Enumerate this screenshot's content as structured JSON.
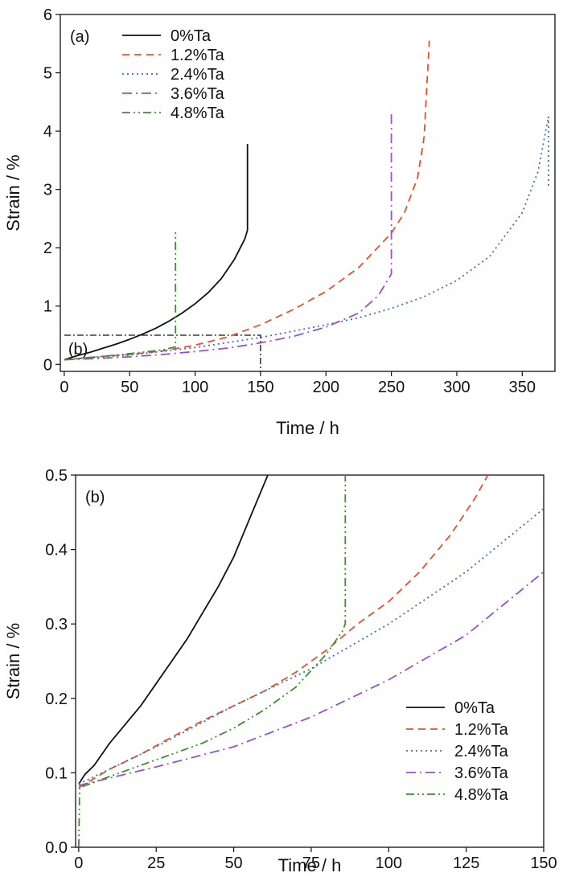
{
  "figure": {
    "background": "#ffffff",
    "axis_color": "#111111"
  },
  "chart_data": [
    {
      "type": "line",
      "panel_label": "(a)",
      "xlabel": "Time / h",
      "ylabel": "Strain / %",
      "xlim": [
        -3,
        375
      ],
      "ylim": [
        -0.12,
        6
      ],
      "xticks": [
        0,
        50,
        100,
        150,
        200,
        250,
        300,
        350
      ],
      "yticks": [
        0,
        1,
        2,
        3,
        4,
        5,
        6
      ],
      "grid": false,
      "legend_position": "top-left",
      "inset_box": {
        "label": "(b)",
        "x": [
          0,
          150
        ],
        "y": [
          0,
          0.5
        ]
      },
      "series": [
        {
          "name": "0%Ta",
          "color": "#111111",
          "dash": "solid",
          "points": [
            [
              0,
              0.08
            ],
            [
              10,
              0.15
            ],
            [
              20,
              0.21
            ],
            [
              30,
              0.28
            ],
            [
              40,
              0.35
            ],
            [
              50,
              0.43
            ],
            [
              60,
              0.52
            ],
            [
              70,
              0.62
            ],
            [
              80,
              0.74
            ],
            [
              90,
              0.88
            ],
            [
              100,
              1.04
            ],
            [
              110,
              1.23
            ],
            [
              120,
              1.47
            ],
            [
              130,
              1.8
            ],
            [
              138,
              2.15
            ],
            [
              140,
              2.3
            ],
            [
              140,
              3.78
            ]
          ]
        },
        {
          "name": "1.2%Ta",
          "color": "#e8502a",
          "dash": "dashed",
          "points": [
            [
              0,
              0.08
            ],
            [
              25,
              0.13
            ],
            [
              50,
              0.17
            ],
            [
              75,
              0.23
            ],
            [
              100,
              0.33
            ],
            [
              125,
              0.47
            ],
            [
              150,
              0.68
            ],
            [
              175,
              0.94
            ],
            [
              200,
              1.25
            ],
            [
              225,
              1.66
            ],
            [
              250,
              2.25
            ],
            [
              260,
              2.6
            ],
            [
              270,
              3.2
            ],
            [
              275,
              3.9
            ],
            [
              279,
              5.55
            ]
          ]
        },
        {
          "name": "2.4%Ta",
          "color": "#3b6fc4",
          "dash": "dotted",
          "points": [
            [
              0,
              0.08
            ],
            [
              50,
              0.16
            ],
            [
              100,
              0.29
            ],
            [
              150,
              0.46
            ],
            [
              200,
              0.68
            ],
            [
              225,
              0.8
            ],
            [
              250,
              0.96
            ],
            [
              275,
              1.16
            ],
            [
              300,
              1.44
            ],
            [
              325,
              1.85
            ],
            [
              350,
              2.6
            ],
            [
              362,
              3.3
            ],
            [
              370,
              4.25
            ],
            [
              370,
              3.05
            ]
          ]
        },
        {
          "name": "3.6%Ta",
          "color": "#9b4fc6",
          "dash": "dashdot",
          "points": [
            [
              0,
              0.08
            ],
            [
              25,
              0.1
            ],
            [
              50,
              0.13
            ],
            [
              75,
              0.17
            ],
            [
              100,
              0.22
            ],
            [
              125,
              0.28
            ],
            [
              150,
              0.37
            ],
            [
              175,
              0.48
            ],
            [
              200,
              0.64
            ],
            [
              225,
              0.88
            ],
            [
              240,
              1.18
            ],
            [
              250,
              1.55
            ],
            [
              250,
              4.3
            ]
          ]
        },
        {
          "name": "4.8%Ta",
          "color": "#3f8f2e",
          "dash": "dashdotdot",
          "points": [
            [
              0,
              0.08
            ],
            [
              20,
              0.12
            ],
            [
              40,
              0.16
            ],
            [
              60,
              0.21
            ],
            [
              75,
              0.25
            ],
            [
              85,
              0.3
            ],
            [
              85,
              2.3
            ]
          ]
        }
      ]
    },
    {
      "type": "line",
      "panel_label": "(b)",
      "xlabel": "Time / h",
      "ylabel": "Strain / %",
      "xlim": [
        -1,
        150
      ],
      "ylim": [
        0,
        0.5
      ],
      "xticks": [
        0,
        25,
        50,
        75,
        100,
        125,
        150
      ],
      "yticks": [
        0.0,
        0.1,
        0.2,
        0.3,
        0.4,
        0.5
      ],
      "grid": false,
      "legend_position": "bottom-right",
      "series": [
        {
          "name": "0%Ta",
          "color": "#111111",
          "dash": "solid",
          "points": [
            [
              0,
              0.085
            ],
            [
              2,
              0.098
            ],
            [
              5,
              0.11
            ],
            [
              10,
              0.14
            ],
            [
              15,
              0.165
            ],
            [
              20,
              0.19
            ],
            [
              25,
              0.22
            ],
            [
              30,
              0.25
            ],
            [
              35,
              0.28
            ],
            [
              40,
              0.315
            ],
            [
              45,
              0.35
            ],
            [
              50,
              0.39
            ],
            [
              55,
              0.44
            ],
            [
              60,
              0.49
            ],
            [
              61,
              0.5
            ]
          ]
        },
        {
          "name": "1.2%Ta",
          "color": "#e8502a",
          "dash": "dashed",
          "points": [
            [
              0,
              0.08
            ],
            [
              10,
              0.105
            ],
            [
              20,
              0.125
            ],
            [
              30,
              0.148
            ],
            [
              40,
              0.17
            ],
            [
              50,
              0.19
            ],
            [
              60,
              0.21
            ],
            [
              70,
              0.235
            ],
            [
              80,
              0.265
            ],
            [
              90,
              0.3
            ],
            [
              100,
              0.33
            ],
            [
              110,
              0.37
            ],
            [
              120,
              0.42
            ],
            [
              128,
              0.47
            ],
            [
              132,
              0.5
            ]
          ]
        },
        {
          "name": "2.4%Ta",
          "color": "#3b6fc4",
          "dash": "dotted",
          "points": [
            [
              0,
              0.085
            ],
            [
              25,
              0.135
            ],
            [
              50,
              0.19
            ],
            [
              75,
              0.24
            ],
            [
              100,
              0.3
            ],
            [
              125,
              0.37
            ],
            [
              150,
              0.455
            ]
          ]
        },
        {
          "name": "3.6%Ta",
          "color": "#9b4fc6",
          "dash": "dashdot",
          "points": [
            [
              0,
              0.083
            ],
            [
              25,
              0.108
            ],
            [
              50,
              0.135
            ],
            [
              75,
              0.175
            ],
            [
              100,
              0.225
            ],
            [
              125,
              0.285
            ],
            [
              150,
              0.37
            ]
          ]
        },
        {
          "name": "4.8%Ta",
          "color": "#3f8f2e",
          "dash": "dashdotdot",
          "points": [
            [
              0,
              0
            ],
            [
              0.3,
              0.08
            ],
            [
              10,
              0.095
            ],
            [
              20,
              0.11
            ],
            [
              30,
              0.125
            ],
            [
              40,
              0.14
            ],
            [
              50,
              0.16
            ],
            [
              60,
              0.185
            ],
            [
              70,
              0.215
            ],
            [
              80,
              0.26
            ],
            [
              85,
              0.29
            ],
            [
              86,
              0.3
            ],
            [
              86,
              0.5
            ]
          ]
        }
      ]
    }
  ]
}
